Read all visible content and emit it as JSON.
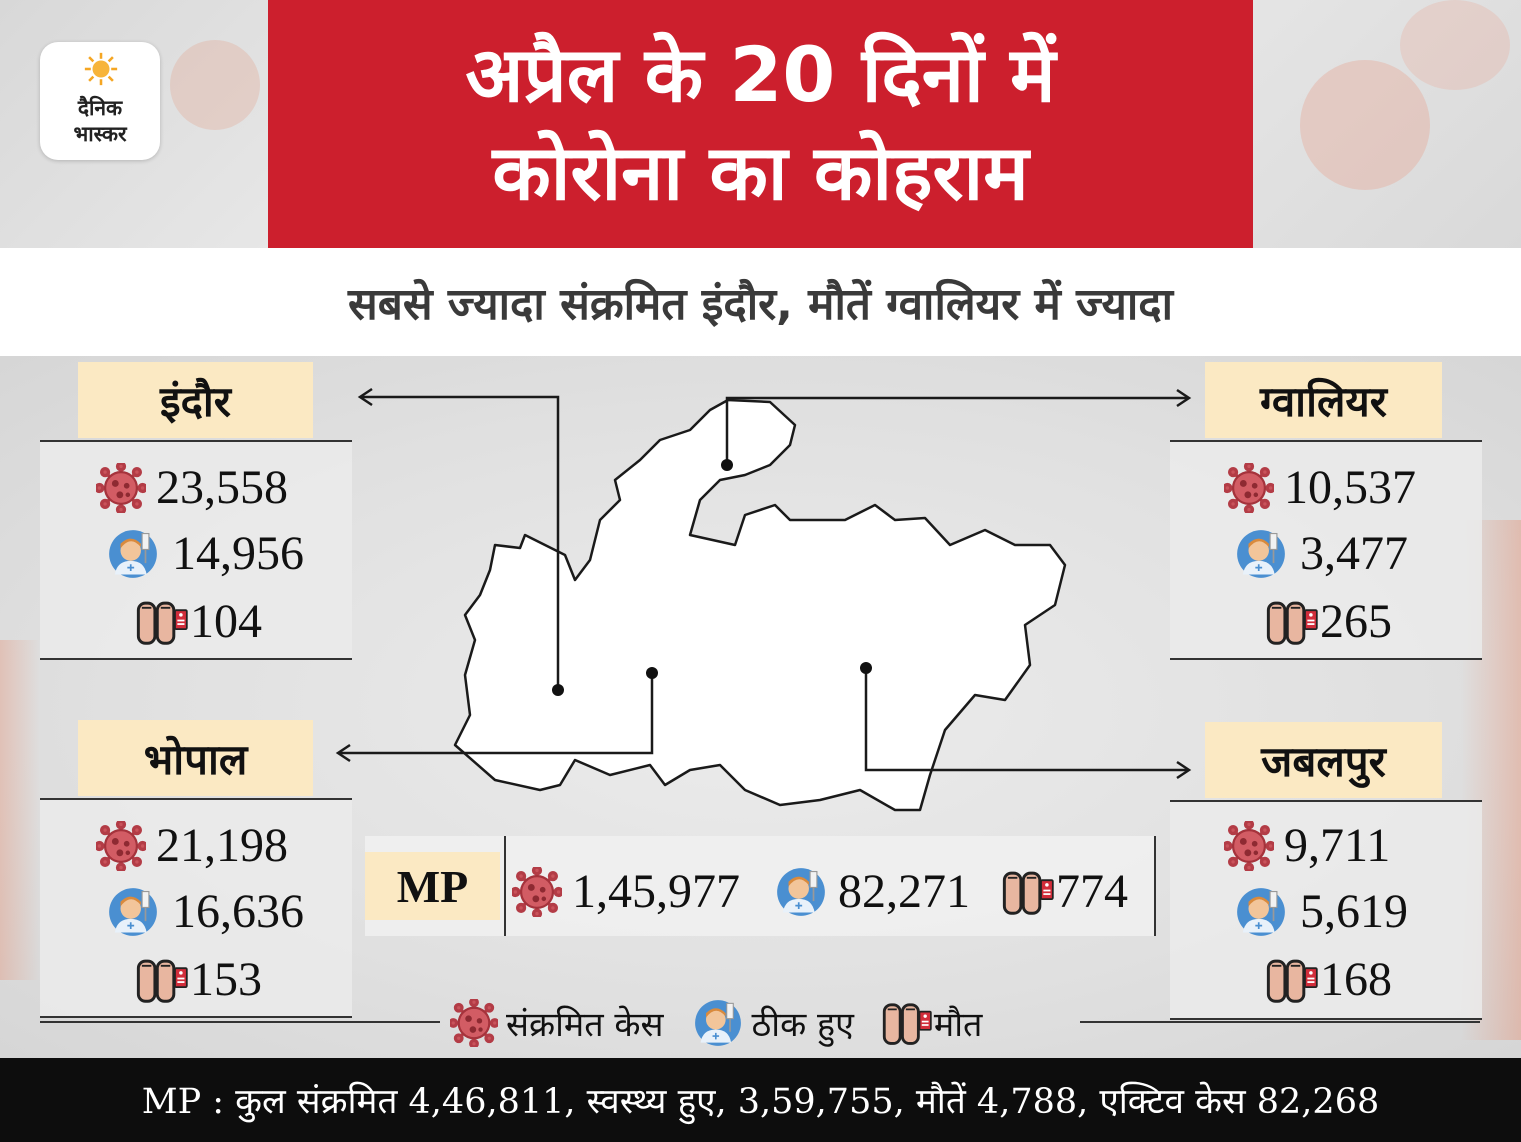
{
  "brand": {
    "logo_line1": "दैनिक",
    "logo_line2": "भास्कर"
  },
  "header": {
    "title_line1": "अप्रैल के 20 दिनों में",
    "title_line2": "कोरोना का कोहराम",
    "subtitle": "सबसे ज्यादा संक्रमित इंदौर, मौतें ग्वालियर में ज्यादा"
  },
  "cities": {
    "indore": {
      "name": "इंदौर",
      "infected": "23,558",
      "recovered": "14,956",
      "deaths": "104"
    },
    "gwalior": {
      "name": "ग्वालियर",
      "infected": "10,537",
      "recovered": "3,477",
      "deaths": "265"
    },
    "bhopal": {
      "name": "भोपाल",
      "infected": "21,198",
      "recovered": "16,636",
      "deaths": "153"
    },
    "jabalpur": {
      "name": "जबलपुर",
      "infected": "9,711",
      "recovered": "5,619",
      "deaths": "168"
    }
  },
  "mp": {
    "label": "MP",
    "infected": "1,45,977",
    "recovered": "82,271",
    "deaths": "774"
  },
  "legend": {
    "infected": "संक्रमित केस",
    "recovered": "ठीक हुए",
    "deaths": "मौत"
  },
  "footer": {
    "text": "MP : कुल संक्रमित 4,46,811, स्वस्थ्य हुए, 3,59,755, मौतें  4,788, एक्टिव केस 82,268"
  },
  "colors": {
    "title_red": "#cc1f2d",
    "label_cream": "#fbe9c3",
    "virus": "#c9535b",
    "footer_bg": "#0d0d0d"
  },
  "icons": {
    "infected": "virus-icon",
    "recovered": "patient-icon",
    "deaths": "feet-tag-icon"
  }
}
